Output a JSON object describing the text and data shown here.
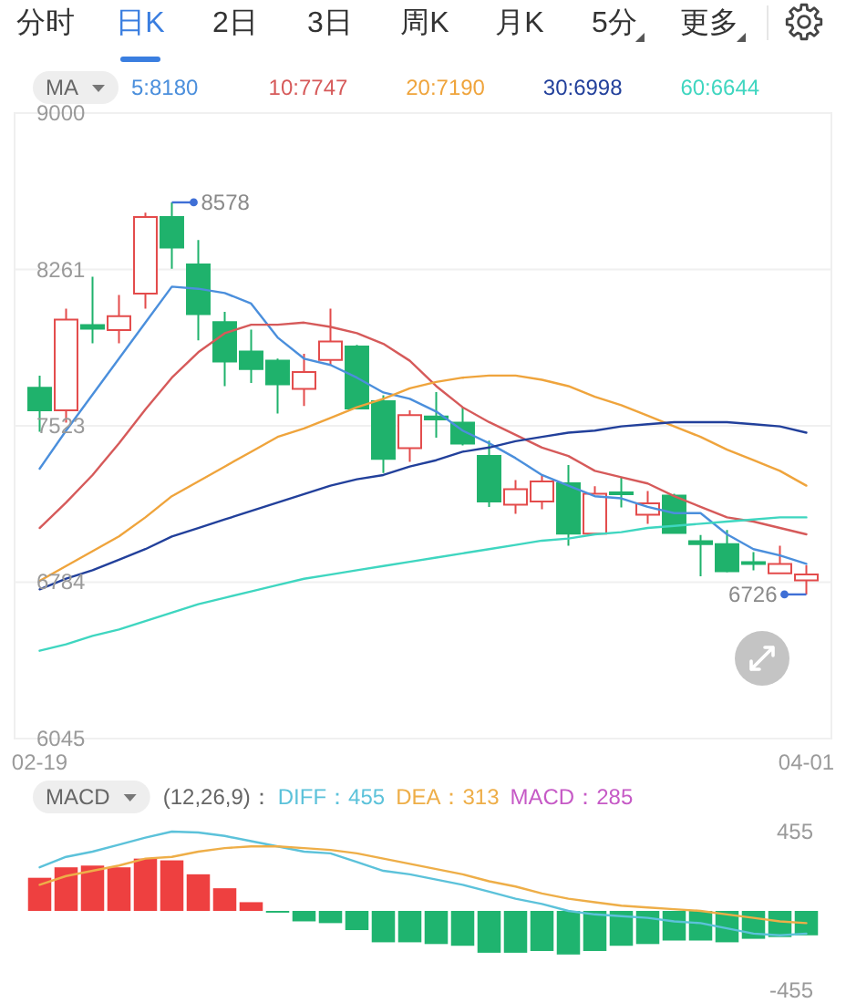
{
  "chart_data": [
    {
      "type": "other",
      "annotations": [
        "分时",
        "日K",
        "2日",
        "3日",
        "周K",
        "月K",
        "5分",
        "更多"
      ]
    },
    {
      "type": "candlestick",
      "categories": [
        "02-19",
        null,
        null,
        null,
        null,
        null,
        null,
        null,
        null,
        null,
        null,
        null,
        null,
        null,
        null,
        null,
        null,
        null,
        null,
        null,
        null,
        null,
        null,
        null,
        null,
        null,
        null,
        null,
        null,
        "04-01"
      ],
      "ohlc": [
        [
          7702,
          7759,
          7495,
          7596
        ],
        [
          7596,
          8076,
          7538,
          8024
        ],
        [
          7998,
          8227,
          7912,
          7981
        ],
        [
          7975,
          8141,
          7912,
          8041
        ],
        [
          8147,
          8529,
          8076,
          8509
        ],
        [
          8509,
          8578,
          8265,
          8365
        ],
        [
          8285,
          8400,
          7926,
          8050
        ],
        [
          8012,
          8061,
          7710,
          7826
        ],
        [
          7874,
          7977,
          7725,
          7791
        ],
        [
          7831,
          7840,
          7581,
          7719
        ],
        [
          7697,
          7863,
          7616,
          7777
        ],
        [
          7834,
          8076,
          7811,
          7921
        ],
        [
          7897,
          7905,
          7600,
          7604
        ],
        [
          7639,
          7667,
          7300,
          7366
        ],
        [
          7417,
          7596,
          7352,
          7573
        ],
        [
          7567,
          7682,
          7467,
          7553
        ],
        [
          7538,
          7610,
          7430,
          7438
        ],
        [
          7380,
          7452,
          7139,
          7165
        ],
        [
          7150,
          7266,
          7107,
          7223
        ],
        [
          7165,
          7288,
          7128,
          7260
        ],
        [
          7251,
          7337,
          6956,
          7013
        ],
        [
          7013,
          7237,
          7008,
          7202
        ],
        [
          7208,
          7280,
          7137,
          7200
        ],
        [
          7102,
          7214,
          7059,
          7156
        ],
        [
          7193,
          7202,
          7016,
          7016
        ],
        [
          6978,
          7007,
          6812,
          6964
        ],
        [
          6964,
          7030,
          6830,
          6835
        ],
        [
          6878,
          6926,
          6840,
          6872
        ],
        [
          6826,
          6956,
          6826,
          6870
        ],
        [
          6792,
          6863,
          6726,
          6820
        ]
      ],
      "colors": [
        "#1fb26c",
        "#e34b4b",
        "#1fb26c",
        "#e34b4b",
        "#e34b4b",
        "#1fb26c",
        "#1fb26c",
        "#1fb26c",
        "#1fb26c",
        "#1fb26c",
        "#e34b4b",
        "#e34b4b",
        "#1fb26c",
        "#1fb26c",
        "#e34b4b",
        "#1fb26c",
        "#1fb26c",
        "#1fb26c",
        "#e34b4b",
        "#e34b4b",
        "#1fb26c",
        "#e34b4b",
        "#1fb26c",
        "#e34b4b",
        "#1fb26c",
        "#1fb26c",
        "#1fb26c",
        "#1fb26c",
        "#e34b4b",
        "#e34b4b"
      ],
      "series": [
        {
          "name": "5:8180",
          "type": "line",
          "color": "#4b8fdc",
          "values": [
            7320,
            7500,
            7670,
            7840,
            8010,
            8180,
            8170,
            8150,
            8100,
            7940,
            7840,
            7810,
            7750,
            7680,
            7650,
            7590,
            7500,
            7440,
            7370,
            7290,
            7240,
            7190,
            7180,
            7140,
            7110,
            7110,
            7010,
            6940,
            6910,
            6870
          ]
        },
        {
          "name": "10:7747",
          "type": "line",
          "color": "#d65a5a",
          "values": [
            7040,
            7160,
            7290,
            7440,
            7600,
            7750,
            7870,
            7960,
            8000,
            8000,
            8010,
            7990,
            7960,
            7910,
            7830,
            7710,
            7610,
            7540,
            7480,
            7420,
            7380,
            7310,
            7280,
            7250,
            7190,
            7140,
            7090,
            7070,
            7040,
            7010
          ]
        },
        {
          "name": "20:7190",
          "type": "line",
          "color": "#efa43c",
          "values": [
            6790,
            6860,
            6930,
            7000,
            7090,
            7190,
            7260,
            7330,
            7400,
            7470,
            7510,
            7560,
            7610,
            7650,
            7700,
            7730,
            7750,
            7760,
            7760,
            7740,
            7710,
            7660,
            7620,
            7570,
            7520,
            7470,
            7410,
            7360,
            7310,
            7240
          ]
        },
        {
          "name": "30:6998",
          "type": "line",
          "color": "#22409b",
          "values": [
            6750,
            6800,
            6840,
            6890,
            6940,
            7000,
            7040,
            7080,
            7120,
            7160,
            7200,
            7240,
            7270,
            7290,
            7330,
            7360,
            7400,
            7420,
            7450,
            7470,
            7490,
            7500,
            7520,
            7530,
            7540,
            7540,
            7540,
            7530,
            7520,
            7490
          ]
        },
        {
          "name": "60:6644",
          "type": "line",
          "color": "#3fd6c0",
          "values": [
            6460,
            6490,
            6530,
            6560,
            6600,
            6640,
            6680,
            6710,
            6740,
            6770,
            6800,
            6820,
            6840,
            6860,
            6880,
            6900,
            6920,
            6940,
            6960,
            6980,
            6990,
            7010,
            7020,
            7040,
            7050,
            7060,
            7070,
            7080,
            7090,
            7090
          ]
        }
      ],
      "ylim": [
        6045,
        9000
      ],
      "yticks": [
        9000,
        8261,
        7523,
        6784,
        6045
      ],
      "grid": "y",
      "legend": "top",
      "legend_title": "MA",
      "annotations": [
        "8578",
        "6726"
      ]
    },
    {
      "type": "bar",
      "categories": [
        null,
        null,
        null,
        null,
        null,
        null,
        null,
        null,
        null,
        null,
        null,
        null,
        null,
        null,
        null,
        null,
        null,
        null,
        null,
        null,
        null,
        null,
        null,
        null,
        null,
        null,
        null,
        null,
        null,
        null
      ],
      "series": [
        {
          "name": "DIFF：455",
          "type": "line",
          "color": "#5cc2da",
          "values": [
            250,
            310,
            340,
            380,
            420,
            455,
            450,
            430,
            400,
            370,
            340,
            330,
            280,
            230,
            210,
            180,
            150,
            110,
            70,
            40,
            0,
            -20,
            -30,
            -40,
            -60,
            -70,
            -100,
            -130,
            -140,
            -130
          ]
        },
        {
          "name": "DEA：313",
          "type": "line",
          "color": "#eeae48",
          "values": [
            150,
            200,
            230,
            260,
            300,
            310,
            340,
            360,
            370,
            370,
            360,
            350,
            330,
            300,
            270,
            240,
            210,
            170,
            140,
            100,
            70,
            50,
            30,
            20,
            10,
            0,
            -20,
            -40,
            -60,
            -70
          ]
        },
        {
          "type": "bar",
          "values": [
            190,
            250,
            260,
            250,
            300,
            290,
            210,
            130,
            50,
            -10,
            -60,
            -70,
            -110,
            -180,
            -180,
            -190,
            -200,
            -240,
            -240,
            -230,
            -250,
            -230,
            -200,
            -190,
            -170,
            -170,
            -180,
            -160,
            -150,
            -140
          ],
          "colors": [
            "#ee4040",
            "#ee4040",
            "#ee4040",
            "#ee4040",
            "#ee4040",
            "#ee4040",
            "#ee4040",
            "#ee4040",
            "#ee4040",
            "#1fb46f",
            "#1fb46f",
            "#1fb46f",
            "#1fb46f",
            "#1fb46f",
            "#1fb46f",
            "#1fb46f",
            "#1fb46f",
            "#1fb46f",
            "#1fb46f",
            "#1fb46f",
            "#1fb46f",
            "#1fb46f",
            "#1fb46f",
            "#1fb46f",
            "#1fb46f",
            "#1fb46f",
            "#1fb46f",
            "#1fb46f",
            "#1fb46f",
            "#1fb46f"
          ]
        }
      ],
      "ylim": [
        -455,
        455
      ],
      "yticks": [
        -455,
        455
      ],
      "tick_labels": "y",
      "legend": "top",
      "legend_title": "MACD",
      "annotations": [
        "(12,26,9)：",
        "MACD：285"
      ]
    }
  ]
}
